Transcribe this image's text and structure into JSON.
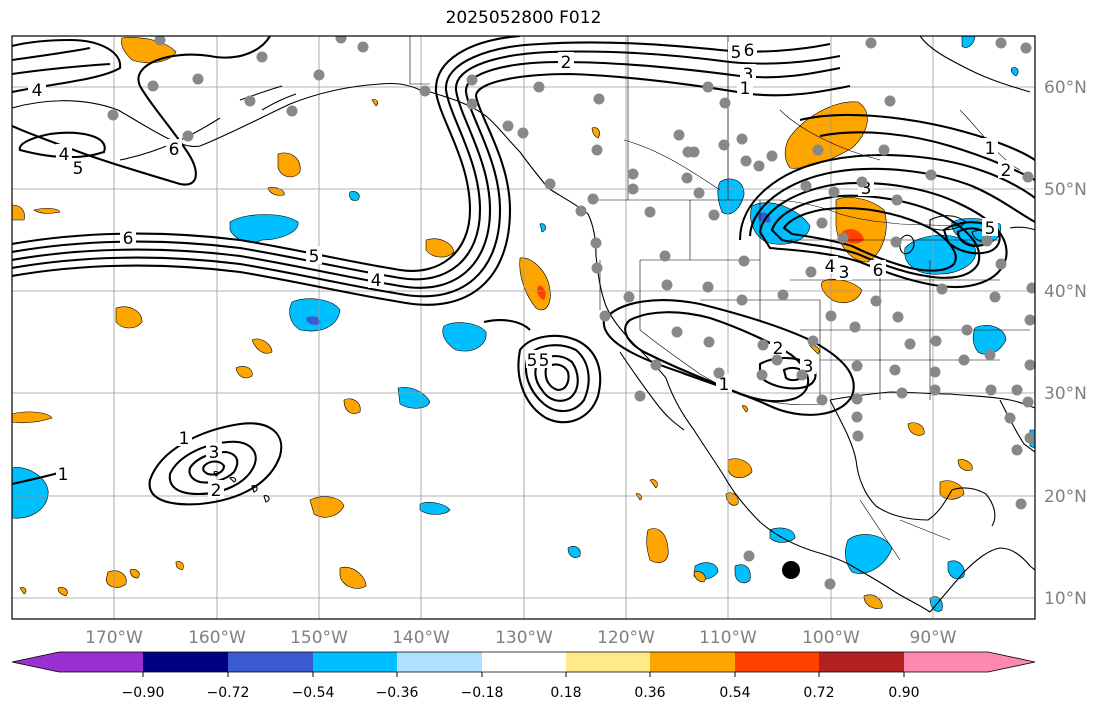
{
  "title": "2025052800 F012",
  "lon_labels": [
    "170°W",
    "160°W",
    "150°W",
    "140°W",
    "130°W",
    "120°W",
    "110°W",
    "100°W",
    "90°W"
  ],
  "lat_labels": [
    "60°N",
    "50°N",
    "40°N",
    "30°N",
    "20°N",
    "10°N"
  ],
  "colorbar": {
    "ticks": [
      "−0.90",
      "−0.72",
      "−0.54",
      "−0.36",
      "−0.18",
      "0.18",
      "0.36",
      "0.54",
      "0.72",
      "0.90"
    ],
    "colors": [
      "#9b30d0",
      "#000080",
      "#3a5bd0",
      "#00bfff",
      "#aee0ff",
      "#ffffff",
      "#ffea8a",
      "#ffa500",
      "#ff4000",
      "#b22222",
      "#ff88b0"
    ],
    "under_color": "#9b30d0",
    "over_color": "#ff88b0"
  },
  "contour_labels": [
    {
      "text": "4"
    },
    {
      "text": "4"
    },
    {
      "text": "5"
    },
    {
      "text": "6"
    },
    {
      "text": "6"
    },
    {
      "text": "5"
    },
    {
      "text": "4"
    },
    {
      "text": "2"
    },
    {
      "text": "5"
    },
    {
      "text": "6"
    },
    {
      "text": "3"
    },
    {
      "text": "1"
    },
    {
      "text": "1"
    },
    {
      "text": "2"
    },
    {
      "text": "3"
    },
    {
      "text": "5"
    },
    {
      "text": "5"
    },
    {
      "text": "6"
    },
    {
      "text": "4"
    },
    {
      "text": "3"
    },
    {
      "text": "2"
    },
    {
      "text": "1"
    },
    {
      "text": "3"
    },
    {
      "text": "5"
    },
    {
      "text": "1"
    },
    {
      "text": "3"
    },
    {
      "text": "2"
    },
    {
      "text": "1"
    }
  ],
  "legend_swatch_colors": {
    "shade_positive": "#ffa500",
    "shade_negative": "#00bfff",
    "station": "#888888",
    "marker": "#000000"
  }
}
